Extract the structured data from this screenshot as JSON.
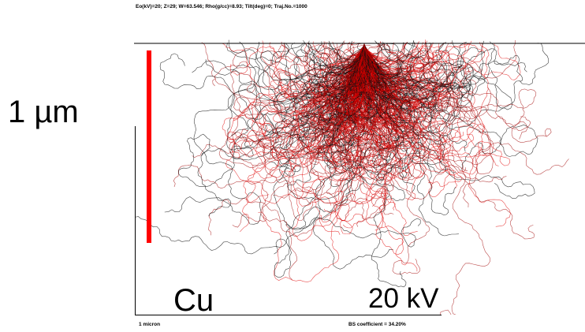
{
  "header": {
    "parameters": "Eo(kV)=20; Z=29; W=63.546; Rho(g/cc)=8.93; Tilt(deg)=0; Traj.No.=1000"
  },
  "scale_label": "1 µm",
  "element_label": "Cu",
  "voltage_label": "20 kV",
  "footer": {
    "scale": "1 micron",
    "bs_coefficient": "BS coefficient = 34.20%"
  }
}
